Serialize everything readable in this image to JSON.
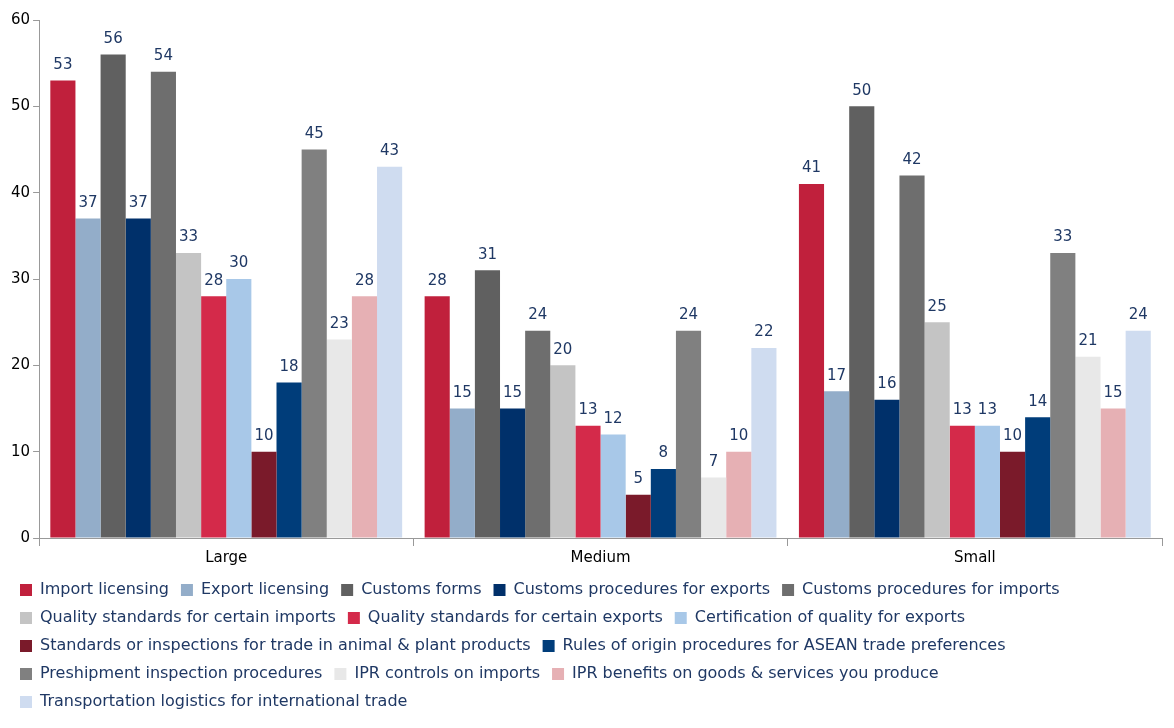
{
  "chart_data": {
    "type": "bar",
    "categories": [
      "Large",
      "Medium",
      "Small"
    ],
    "ylim": [
      0,
      60
    ],
    "yticks": [
      0,
      10,
      20,
      30,
      40,
      50,
      60
    ],
    "grid": false,
    "legend": "bottom",
    "data_labels": true,
    "series": [
      {
        "name": "Import licensing",
        "color": "#c0203c",
        "values": [
          53,
          28,
          41
        ]
      },
      {
        "name": "Export licensing",
        "color": "#93adc9",
        "values": [
          37,
          15,
          17
        ]
      },
      {
        "name": "Customs forms",
        "color": "#606060",
        "values": [
          56,
          31,
          50
        ]
      },
      {
        "name": "Customs procedures for exports",
        "color": "#00306a",
        "values": [
          37,
          15,
          16
        ]
      },
      {
        "name": "Customs procedures for imports",
        "color": "#6e6e6e",
        "values": [
          54,
          24,
          42
        ]
      },
      {
        "name": "Quality standards for certain imports",
        "color": "#c4c4c4",
        "values": [
          33,
          20,
          25
        ]
      },
      {
        "name": "Quality standards for certain exports",
        "color": "#d42a4a",
        "values": [
          28,
          13,
          13
        ]
      },
      {
        "name": "Certification of quality for exports",
        "color": "#a8c8e8",
        "values": [
          30,
          12,
          13
        ]
      },
      {
        "name": "Standards or inspections for trade in animal & plant products",
        "color": "#7a1a2a",
        "values": [
          10,
          5,
          10
        ]
      },
      {
        "name": "Rules of origin procedures for ASEAN trade preferences",
        "color": "#003d7a",
        "values": [
          18,
          8,
          14
        ]
      },
      {
        "name": "Preshipment inspection procedures",
        "color": "#808080",
        "values": [
          45,
          24,
          33
        ]
      },
      {
        "name": "IPR controls on imports",
        "color": "#e8e8e8",
        "values": [
          23,
          7,
          21
        ]
      },
      {
        "name": "IPR benefits on goods & services you produce",
        "color": "#e6b0b4",
        "values": [
          28,
          10,
          15
        ]
      },
      {
        "name": "Transportation logistics for international trade",
        "color": "#cfdcf0",
        "values": [
          43,
          22,
          24
        ]
      }
    ]
  }
}
